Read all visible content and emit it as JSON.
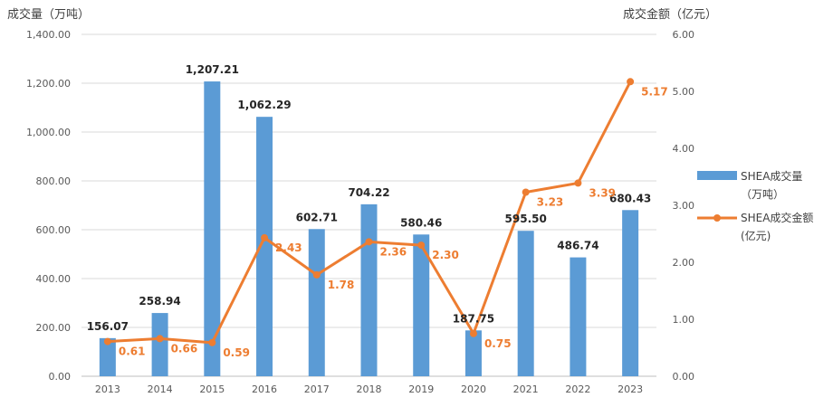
{
  "chart_data": {
    "type": "bar",
    "left_axis_title": "成交量（万吨）",
    "right_axis_title": "成交金额（亿元）",
    "categories": [
      "2013",
      "2014",
      "2015",
      "2016",
      "2017",
      "2018",
      "2019",
      "2020",
      "2021",
      "2022",
      "2023"
    ],
    "series": [
      {
        "name": "SHEA成交量",
        "name_sub": "（万吨）",
        "type": "bar",
        "axis": "left",
        "color": "#5B9BD5",
        "values": [
          156.07,
          258.94,
          1207.21,
          1062.29,
          602.71,
          704.22,
          580.46,
          187.75,
          595.5,
          486.74,
          680.43
        ],
        "labels": [
          "156.07",
          "258.94",
          "1,207.21",
          "1,062.29",
          "602.71",
          "704.22",
          "580.46",
          "187.75",
          "595.50",
          "486.74",
          "680.43"
        ]
      },
      {
        "name": "SHEA成交金额",
        "name_sub": "(亿元)",
        "type": "line",
        "axis": "right",
        "color": "#ED7D31",
        "values": [
          0.61,
          0.66,
          0.59,
          2.43,
          1.78,
          2.36,
          2.3,
          0.75,
          3.23,
          3.39,
          5.17
        ],
        "labels": [
          "0.61",
          "0.66",
          "0.59",
          "2.43",
          "1.78",
          "2.36",
          "2.30",
          "0.75",
          "3.23",
          "3.39",
          "5.17"
        ]
      }
    ],
    "left_axis": {
      "min": 0,
      "max": 1400,
      "ticks": [
        "0.00",
        "200.00",
        "400.00",
        "600.00",
        "800.00",
        "1,000.00",
        "1,200.00",
        "1,400.00"
      ]
    },
    "right_axis": {
      "min": 0,
      "max": 6,
      "ticks": [
        "0.00",
        "1.00",
        "2.00",
        "3.00",
        "4.00",
        "5.00",
        "6.00"
      ]
    },
    "grid": true,
    "legend_position": "right"
  }
}
